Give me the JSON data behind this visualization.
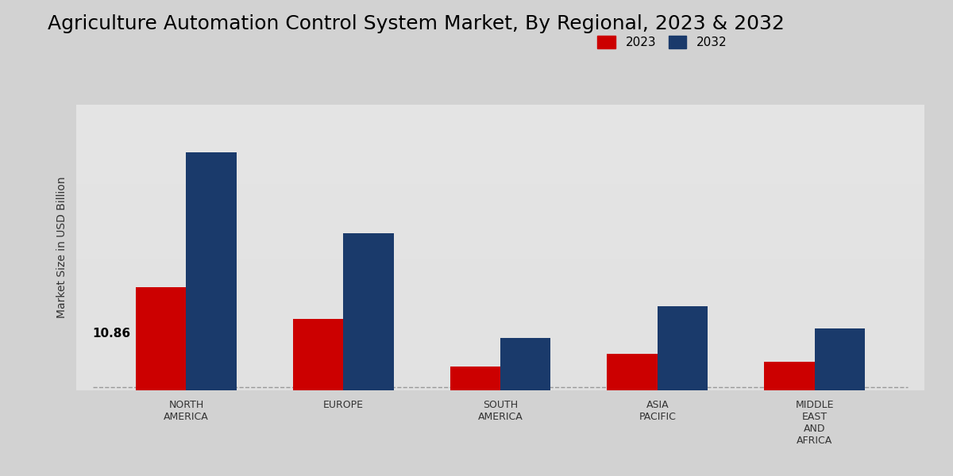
{
  "title": "Agriculture Automation Control System Market, By Regional, 2023 & 2032",
  "ylabel": "Market Size in USD Billion",
  "categories": [
    "NORTH\nAMERICA",
    "EUROPE",
    "SOUTH\nAMERICA",
    "ASIA\nPACIFIC",
    "MIDDLE\nEAST\nAND\nAFRICA"
  ],
  "values_2023": [
    10.86,
    7.5,
    2.5,
    3.8,
    3.0
  ],
  "values_2032": [
    25.0,
    16.5,
    5.5,
    8.8,
    6.5
  ],
  "color_2023": "#cc0000",
  "color_2032": "#1a3a6b",
  "annotation_value": "10.86",
  "annotation_region_idx": 0,
  "bg_color_top": "#d0d0d0",
  "bg_color_mid": "#e8e8e8",
  "bg_color_bottom": "#d8d8d8",
  "bar_width": 0.32,
  "ylim": [
    0,
    30
  ],
  "legend_labels": [
    "2023",
    "2032"
  ],
  "title_fontsize": 18,
  "label_fontsize": 10,
  "tick_fontsize": 9,
  "legend_fontsize": 11
}
